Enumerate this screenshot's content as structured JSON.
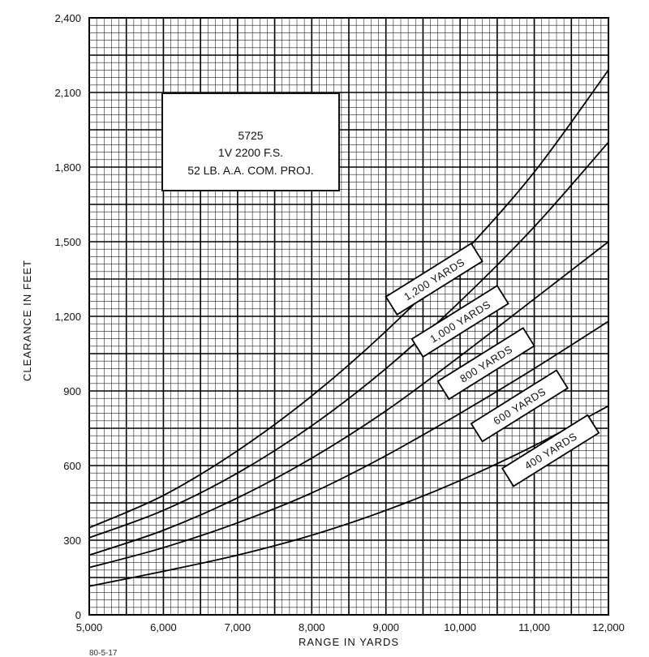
{
  "chart_data": {
    "type": "line",
    "title_lines": [
      "5725",
      "1V 2200 F.S.",
      "52 LB. A.A. COM. PROJ."
    ],
    "xlabel": "RANGE IN YARDS",
    "ylabel": "CLEARANCE IN FEET",
    "xlim": [
      5000,
      12000
    ],
    "ylim": [
      0,
      2400
    ],
    "x_ticks": [
      5000,
      6000,
      7000,
      8000,
      9000,
      10000,
      11000,
      12000
    ],
    "x_tick_labels": [
      "5,000",
      "6,000",
      "7,000",
      "8,000",
      "9,000",
      "10,000",
      "11,000",
      "12,000"
    ],
    "y_ticks": [
      0,
      300,
      600,
      900,
      1200,
      1500,
      1800,
      2100,
      2400
    ],
    "y_tick_labels": [
      "0",
      "300",
      "600",
      "900",
      "1,200",
      "1,500",
      "1,800",
      "2,100",
      "2,400"
    ],
    "grid": true,
    "x": [
      5000,
      6000,
      7000,
      8000,
      9000,
      10000,
      11000,
      12000
    ],
    "series": [
      {
        "name": "1,200 YARDS",
        "values": [
          350,
          480,
          660,
          880,
          1140,
          1440,
          1780,
          2190
        ]
      },
      {
        "name": "1,000 YARDS",
        "values": [
          310,
          420,
          570,
          760,
          990,
          1260,
          1560,
          1900
        ]
      },
      {
        "name": "800 YARDS",
        "values": [
          240,
          340,
          470,
          630,
          820,
          1040,
          1270,
          1500
        ]
      },
      {
        "name": "600 YARDS",
        "values": [
          190,
          270,
          370,
          490,
          640,
          810,
          990,
          1180
        ]
      },
      {
        "name": "400 YARDS",
        "values": [
          115,
          175,
          240,
          320,
          420,
          540,
          680,
          840
        ]
      }
    ],
    "footnote": "80-5-17"
  }
}
